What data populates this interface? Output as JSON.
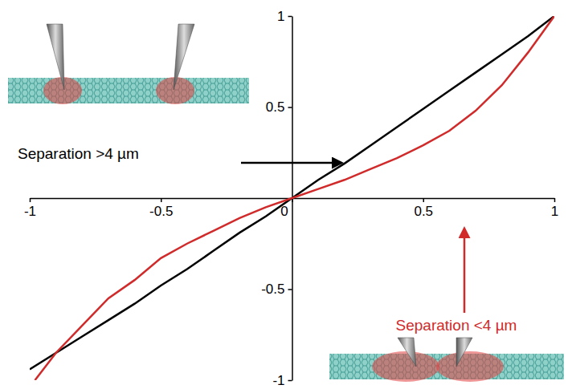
{
  "chart_data": {
    "type": "line",
    "xlim": [
      -1,
      1
    ],
    "ylim": [
      -1,
      1
    ],
    "xticks": [
      -1,
      -0.5,
      0,
      0.5,
      1
    ],
    "yticks": [
      -1,
      -0.5,
      0.5,
      1
    ],
    "series": [
      {
        "name": "Separation >4 µm",
        "color": "#000000",
        "x": [
          -1,
          -0.9,
          -0.8,
          -0.7,
          -0.6,
          -0.5,
          -0.4,
          -0.3,
          -0.2,
          -0.1,
          0,
          0.1,
          0.2,
          0.3,
          0.4,
          0.5,
          0.6,
          0.7,
          0.8,
          0.9,
          1
        ],
        "values": [
          -0.94,
          -0.85,
          -0.76,
          -0.67,
          -0.58,
          -0.48,
          -0.39,
          -0.29,
          -0.19,
          -0.1,
          0,
          0.1,
          0.19,
          0.29,
          0.39,
          0.49,
          0.59,
          0.69,
          0.79,
          0.89,
          1
        ]
      },
      {
        "name": "Separation <4 µm",
        "color": "#d02a2a",
        "x": [
          -0.98,
          -0.9,
          -0.8,
          -0.7,
          -0.6,
          -0.5,
          -0.4,
          -0.3,
          -0.2,
          -0.1,
          0,
          0.1,
          0.2,
          0.3,
          0.4,
          0.5,
          0.6,
          0.7,
          0.8,
          0.9,
          1
        ],
        "values": [
          -1,
          -0.85,
          -0.7,
          -0.55,
          -0.45,
          -0.33,
          -0.25,
          -0.18,
          -0.11,
          -0.05,
          0,
          0.05,
          0.1,
          0.16,
          0.22,
          0.29,
          0.37,
          0.48,
          0.62,
          0.8,
          1
        ]
      }
    ]
  }
}
